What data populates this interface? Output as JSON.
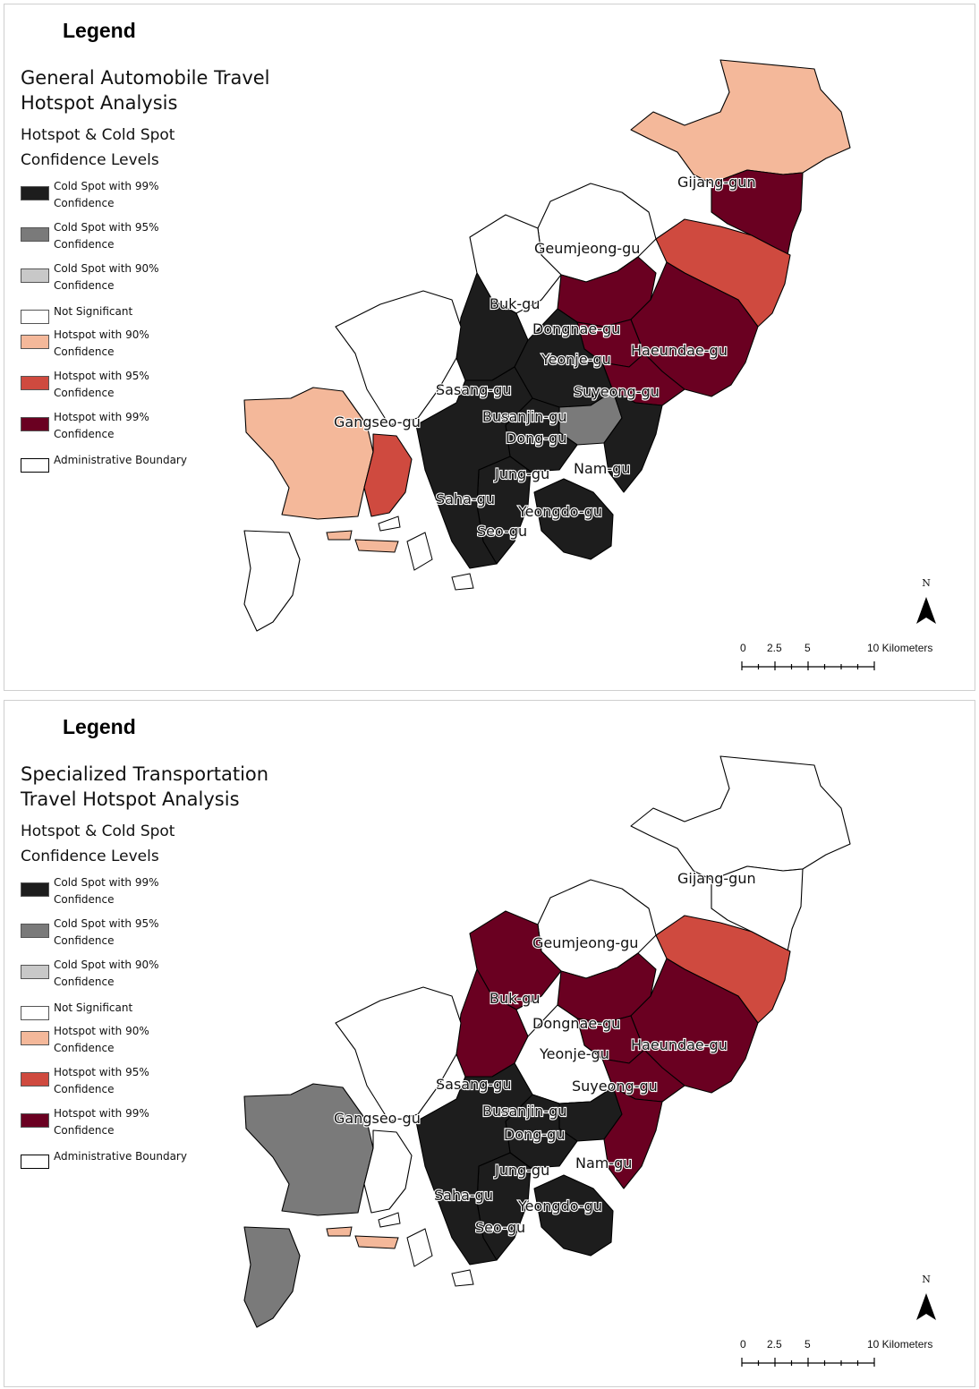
{
  "colors": {
    "cold99": "#1d1d1d",
    "cold95": "#7a7a7a",
    "cold90": "#c8c8c8",
    "notsig": "#ffffff",
    "hot90": "#f4b89a",
    "hot95": "#cf4a3f",
    "hot99": "#6a0021",
    "boundary": "#000000"
  },
  "legend_items": [
    {
      "key": "cold99",
      "label": "Cold Spot with 99% Confidence"
    },
    {
      "key": "cold95",
      "label": "Cold Spot with 95% Confidence"
    },
    {
      "key": "cold90",
      "label": "Cold Spot with 90% Confidence"
    },
    {
      "key": "notsig",
      "label": "Not Significant"
    },
    {
      "key": "hot90",
      "label": "Hotspot with 90% Confidence"
    },
    {
      "key": "hot95",
      "label": "Hotspot with 95% Confidence"
    },
    {
      "key": "hot99",
      "label": "Hotspot with 99% Confidence"
    },
    {
      "key": "boundary",
      "label": "Administrative Boundary"
    }
  ],
  "panels": [
    {
      "legend_heading": "Legend",
      "title": "General Automobile Travel\nHotspot Analysis",
      "subtitle": "Hotspot & Cold Spot Confidence Levels",
      "district_classes": {
        "Gijang-gun": "hot99",
        "Gijang-north": "hot90",
        "Geumjeong-gu": "notsig",
        "Buk-gu": "notsig",
        "Dongnae-gu": "hot99",
        "Yeonje-gu": "hot99",
        "Haeundae-gu": "hot99",
        "Haeundae-east": "hot95",
        "Suyeong-gu": "hot99",
        "Sasang-gu": "cold99",
        "Busanjin-gu": "cold99",
        "Dong-gu": "cold95",
        "Nam-gu": "cold99",
        "Jung-gu": "cold99",
        "Seo-gu": "cold99",
        "Saha-gu": "cold99",
        "Yeongdo-gu": "cold99",
        "Gangseo-gu": "hot90",
        "Gangseo-east": "hot95",
        "Gangseo-north": "notsig",
        "Gadeok": "notsig"
      }
    },
    {
      "legend_heading": "Legend",
      "title": "Specialized Transportation\nTravel Hotspot Analysis",
      "subtitle": "Hotspot & Cold Spot Confidence Levels",
      "district_classes": {
        "Gijang-gun": "notsig",
        "Gijang-north": "notsig",
        "Geumjeong-gu": "notsig",
        "Buk-gu": "hot99",
        "Dongnae-gu": "hot99",
        "Yeonje-gu": "hot99",
        "Haeundae-gu": "hot99",
        "Haeundae-east": "hot95",
        "Suyeong-gu": "hot99",
        "Sasang-gu": "hot99",
        "Busanjin-gu": "notsig",
        "Dong-gu": "cold99",
        "Nam-gu": "hot99",
        "Jung-gu": "cold99",
        "Seo-gu": "cold99",
        "Saha-gu": "cold99",
        "Yeongdo-gu": "cold99",
        "Gangseo-gu": "cold95",
        "Gangseo-east": "notsig",
        "Gangseo-north": "notsig",
        "Gadeok": "cold95"
      }
    }
  ],
  "district_labels": [
    "Gijang-gun",
    "Geumjeong-gu",
    "Buk-gu",
    "Dongnae-gu",
    "Yeonje-gu",
    "Haeundae-gu",
    "Suyeong-gu",
    "Sasang-gu",
    "Gangseo-gu",
    "Busanjin-gu",
    "Dong-gu",
    "Jung-gu",
    "Nam-gu",
    "Saha-gu",
    "Yeongdo-gu",
    "Seo-gu"
  ],
  "north_arrow": {
    "letter": "N",
    "icon": "north-arrow-icon"
  },
  "scale_bar": {
    "ticks": [
      "0",
      "2.5",
      "5",
      "10 Kilometers"
    ]
  }
}
